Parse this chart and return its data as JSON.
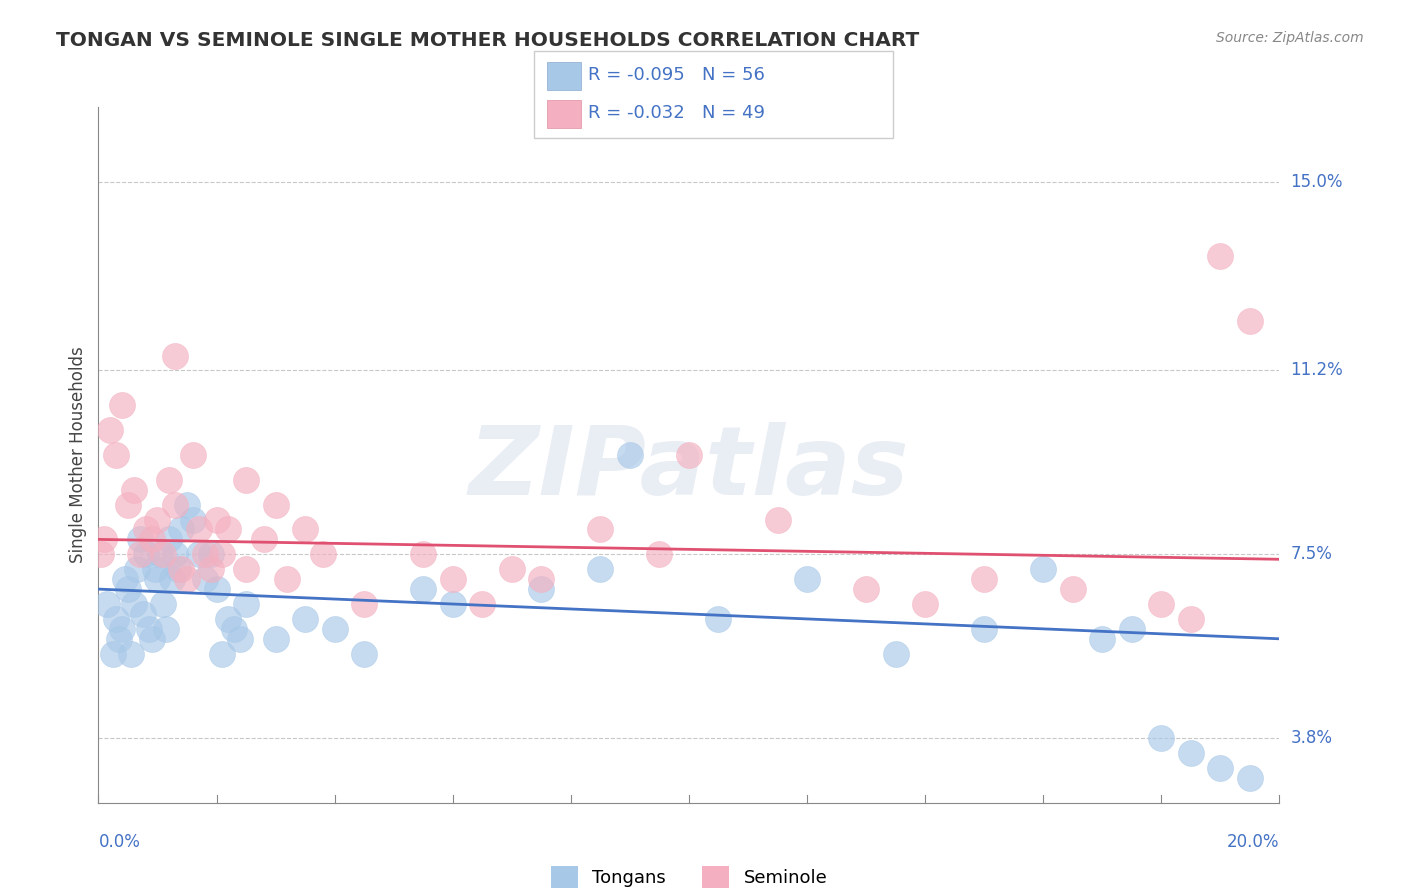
{
  "title": "TONGAN VS SEMINOLE SINGLE MOTHER HOUSEHOLDS CORRELATION CHART",
  "source": "Source: ZipAtlas.com",
  "ylabel": "Single Mother Households",
  "yticks": [
    3.8,
    7.5,
    11.2,
    15.0
  ],
  "ytick_labels": [
    "3.8%",
    "7.5%",
    "11.2%",
    "15.0%"
  ],
  "xmin": 0.0,
  "xmax": 20.0,
  "ymin": 2.5,
  "ymax": 16.5,
  "legend_blue_r": "R = -0.095",
  "legend_blue_n": "N = 56",
  "legend_pink_r": "R = -0.032",
  "legend_pink_n": "N = 49",
  "legend_label_blue": "Tongans",
  "legend_label_pink": "Seminole",
  "blue_color": "#A8C8E8",
  "pink_color": "#F4B0C0",
  "blue_line_color": "#4472C4",
  "pink_line_color": "#E05070",
  "watermark": "ZIPatlas",
  "blue_scatter_x": [
    0.15,
    0.25,
    0.3,
    0.35,
    0.4,
    0.45,
    0.5,
    0.55,
    0.6,
    0.65,
    0.7,
    0.75,
    0.8,
    0.85,
    0.9,
    0.95,
    1.0,
    1.05,
    1.1,
    1.15,
    1.2,
    1.25,
    1.3,
    1.35,
    1.4,
    1.5,
    1.6,
    1.7,
    1.8,
    1.9,
    2.0,
    2.1,
    2.2,
    2.3,
    2.4,
    2.5,
    3.0,
    3.5,
    4.0,
    4.5,
    5.5,
    6.0,
    7.5,
    8.5,
    9.0,
    10.5,
    12.0,
    13.5,
    15.0,
    16.0,
    17.0,
    17.5,
    18.0,
    18.5,
    19.0,
    19.5
  ],
  "blue_scatter_y": [
    6.5,
    5.5,
    6.2,
    5.8,
    6.0,
    7.0,
    6.8,
    5.5,
    6.5,
    7.2,
    7.8,
    6.3,
    7.5,
    6.0,
    5.8,
    7.2,
    7.0,
    7.5,
    6.5,
    6.0,
    7.8,
    7.0,
    7.5,
    7.2,
    8.0,
    8.5,
    8.2,
    7.5,
    7.0,
    7.5,
    6.8,
    5.5,
    6.2,
    6.0,
    5.8,
    6.5,
    5.8,
    6.2,
    6.0,
    5.5,
    6.8,
    6.5,
    6.8,
    7.2,
    9.5,
    6.2,
    7.0,
    5.5,
    6.0,
    7.2,
    5.8,
    6.0,
    3.8,
    3.5,
    3.2,
    3.0
  ],
  "pink_scatter_x": [
    0.1,
    0.2,
    0.3,
    0.4,
    0.5,
    0.6,
    0.7,
    0.8,
    0.9,
    1.0,
    1.1,
    1.2,
    1.3,
    1.4,
    1.5,
    1.6,
    1.7,
    1.8,
    1.9,
    2.0,
    2.1,
    2.2,
    2.5,
    2.8,
    3.0,
    3.2,
    3.5,
    3.8,
    4.5,
    5.5,
    6.0,
    6.5,
    7.0,
    7.5,
    8.5,
    9.5,
    10.0,
    11.5,
    13.0,
    14.0,
    15.0,
    16.5,
    18.0,
    18.5,
    19.0,
    19.5,
    0.05,
    1.3,
    2.5
  ],
  "pink_scatter_y": [
    7.8,
    10.0,
    9.5,
    10.5,
    8.5,
    8.8,
    7.5,
    8.0,
    7.8,
    8.2,
    7.5,
    9.0,
    8.5,
    7.2,
    7.0,
    9.5,
    8.0,
    7.5,
    7.2,
    8.2,
    7.5,
    8.0,
    7.2,
    7.8,
    8.5,
    7.0,
    8.0,
    7.5,
    6.5,
    7.5,
    7.0,
    6.5,
    7.2,
    7.0,
    8.0,
    7.5,
    9.5,
    8.2,
    6.8,
    6.5,
    7.0,
    6.8,
    6.5,
    6.2,
    13.5,
    12.2,
    7.5,
    11.5,
    9.0
  ]
}
